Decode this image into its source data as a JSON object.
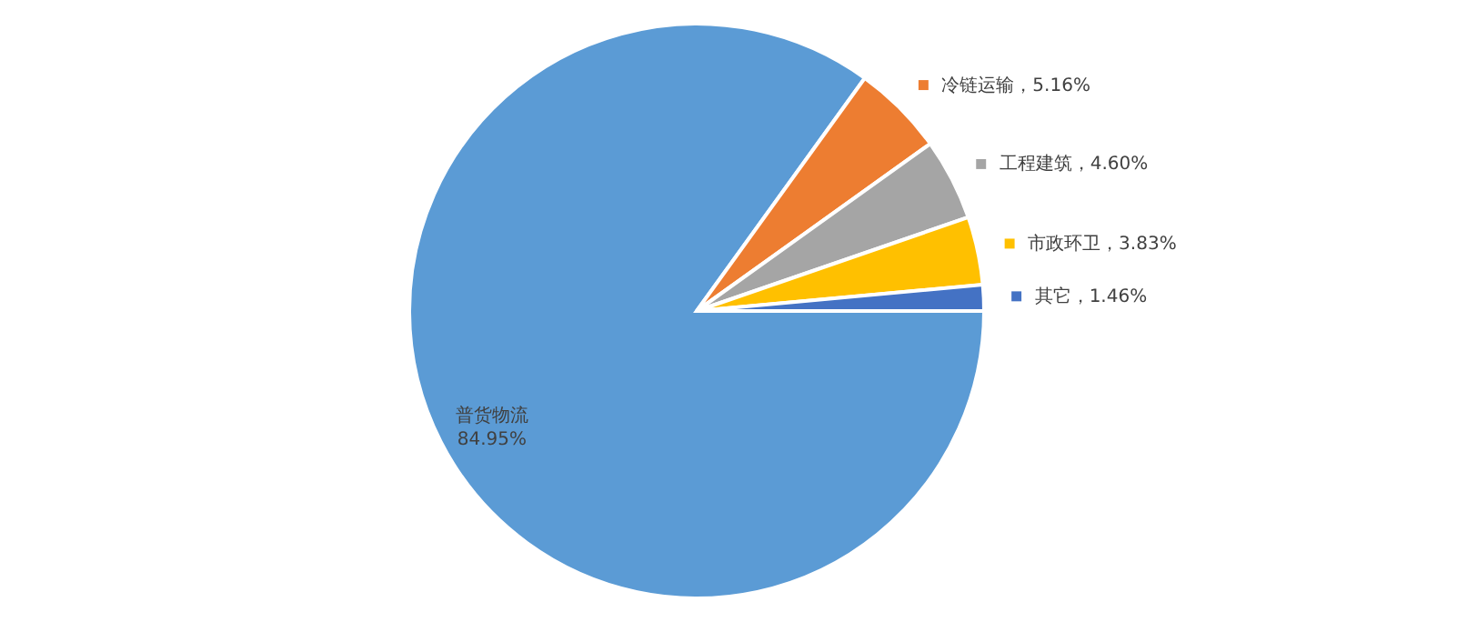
{
  "chart_data": {
    "type": "pie",
    "categories": [
      "普货物流",
      "冷链运输",
      "工程建筑",
      "市政环卫",
      "其它"
    ],
    "values": [
      84.95,
      5.16,
      4.6,
      3.83,
      1.46
    ],
    "colors": [
      "#5b9bd5",
      "#ed7d31",
      "#a5a5a5",
      "#ffc000",
      "#4472c4"
    ],
    "legend": "right",
    "value_labels": [
      "84.95%",
      "，5.16%",
      "，4.60%",
      "，3.83%",
      "，1.46%"
    ]
  }
}
